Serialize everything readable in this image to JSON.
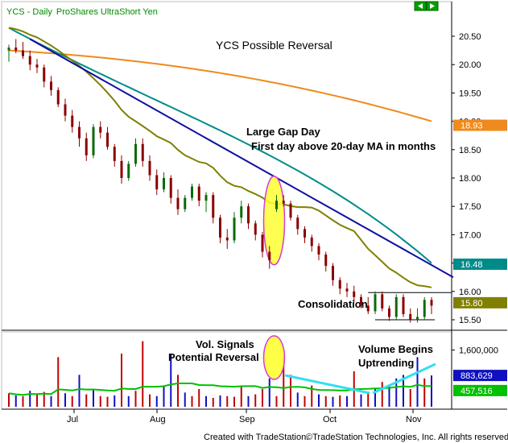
{
  "header": {
    "symbol": "YCS",
    "separator": " - ",
    "interval": "Daily",
    "name": "ProShares UltraShort Yen"
  },
  "footer": {
    "left": "Created with TradeStation.",
    "right": "©TradeStation Technologies, Inc. All rights reserved."
  },
  "colors": {
    "background": "#ffffff",
    "price_bar": "#0a6a0a",
    "down_bar": "#8b0000",
    "ma20": "#808000",
    "ma50": "#008b8b",
    "ma200": "#ee8a1e",
    "trendline": "#1010a0",
    "highlight": "#ffff33",
    "ellipse_edge": "#d63ad6",
    "volume_up": "#1010c0",
    "volume_down": "#c00000",
    "volume_ma": "#00c000",
    "volume_trend": "#30e0f0"
  },
  "chart_data": {
    "type": "candlestick",
    "title": "YCS Possible Reversal",
    "x_ticks": [
      "Jul",
      "Aug",
      "Sep",
      "Oct",
      "Nov"
    ],
    "price_axis": {
      "ticks": [
        "20.50",
        "20.00",
        "19.50",
        "19.00",
        "18.50",
        "18.00",
        "17.50",
        "17.00",
        "16.50",
        "16.00",
        "15.50"
      ],
      "range": [
        15.5,
        20.75
      ]
    },
    "price_labels": [
      {
        "value": 18.93,
        "text": "18.93",
        "color": "#ee8a1e"
      },
      {
        "value": 16.48,
        "text": "16.48",
        "color": "#008b8b"
      },
      {
        "value": 15.8,
        "text": "15.80",
        "color": "#808000"
      }
    ],
    "annotations": {
      "gap_title": "Large Gap Day",
      "gap_subtitle": "First day above 20-day MA in months",
      "consolidation": "Consolidation",
      "vol_signals_1": "Vol. Signals",
      "vol_signals_2": "Potential  Reversal",
      "vol_begins_1": "Volume Begins",
      "vol_begins_2": "Uptrending"
    },
    "price_bars": [
      [
        20.25,
        20.35,
        20.05,
        20.3
      ],
      [
        20.3,
        20.45,
        20.2,
        20.25
      ],
      [
        20.25,
        20.4,
        20.1,
        20.15
      ],
      [
        20.15,
        20.25,
        19.9,
        20.0
      ],
      [
        20.0,
        20.1,
        19.85,
        19.95
      ],
      [
        19.95,
        20.0,
        19.6,
        19.7
      ],
      [
        19.7,
        19.8,
        19.45,
        19.55
      ],
      [
        19.55,
        19.6,
        19.25,
        19.3
      ],
      [
        19.3,
        19.4,
        19.0,
        19.1
      ],
      [
        19.1,
        19.2,
        18.8,
        18.9
      ],
      [
        18.9,
        19.0,
        18.55,
        18.7
      ],
      [
        18.7,
        18.8,
        18.3,
        18.4
      ],
      [
        18.4,
        18.95,
        18.35,
        18.9
      ],
      [
        18.9,
        19.0,
        18.7,
        18.8
      ],
      [
        18.8,
        18.9,
        18.5,
        18.55
      ],
      [
        18.55,
        18.6,
        18.2,
        18.3
      ],
      [
        18.3,
        18.4,
        17.9,
        18.0
      ],
      [
        18.0,
        18.3,
        17.95,
        18.25
      ],
      [
        18.25,
        18.7,
        18.2,
        18.6
      ],
      [
        18.6,
        18.7,
        18.2,
        18.3
      ],
      [
        18.3,
        18.4,
        17.95,
        18.05
      ],
      [
        18.05,
        18.15,
        17.7,
        17.8
      ],
      [
        17.8,
        18.1,
        17.75,
        18.0
      ],
      [
        18.0,
        18.05,
        17.55,
        17.65
      ],
      [
        17.65,
        17.8,
        17.35,
        17.45
      ],
      [
        17.45,
        17.7,
        17.4,
        17.65
      ],
      [
        17.65,
        17.9,
        17.6,
        17.85
      ],
      [
        17.85,
        17.9,
        17.5,
        17.6
      ],
      [
        17.6,
        17.75,
        17.4,
        17.7
      ],
      [
        17.7,
        17.75,
        17.2,
        17.3
      ],
      [
        17.3,
        17.35,
        16.85,
        16.95
      ],
      [
        16.95,
        17.1,
        16.75,
        16.9
      ],
      [
        16.9,
        17.4,
        16.85,
        17.3
      ],
      [
        17.3,
        17.6,
        17.2,
        17.5
      ],
      [
        17.5,
        17.55,
        17.1,
        17.2
      ],
      [
        17.2,
        17.25,
        16.9,
        17.0
      ],
      [
        17.0,
        17.05,
        16.6,
        16.7
      ],
      [
        16.7,
        16.8,
        16.4,
        16.55
      ],
      [
        17.45,
        17.7,
        17.4,
        17.6
      ],
      [
        17.6,
        17.7,
        17.5,
        17.55
      ],
      [
        17.55,
        17.6,
        17.25,
        17.3
      ],
      [
        17.3,
        17.35,
        17.0,
        17.1
      ],
      [
        17.1,
        17.15,
        16.85,
        16.95
      ],
      [
        16.95,
        17.0,
        16.7,
        16.8
      ],
      [
        16.8,
        16.85,
        16.55,
        16.65
      ],
      [
        16.65,
        16.7,
        16.35,
        16.45
      ],
      [
        16.45,
        16.5,
        16.1,
        16.2
      ],
      [
        16.2,
        16.25,
        15.95,
        16.05
      ],
      [
        16.05,
        16.15,
        15.9,
        16.0
      ],
      [
        16.0,
        16.1,
        15.8,
        15.9
      ],
      [
        15.9,
        15.95,
        15.7,
        15.75
      ],
      [
        15.75,
        15.9,
        15.6,
        15.65
      ],
      [
        15.65,
        16.0,
        15.6,
        15.95
      ],
      [
        15.95,
        16.0,
        15.65,
        15.7
      ],
      [
        15.7,
        15.75,
        15.48,
        15.55
      ],
      [
        15.55,
        15.95,
        15.5,
        15.9
      ],
      [
        15.9,
        15.95,
        15.55,
        15.6
      ],
      [
        15.6,
        15.7,
        15.45,
        15.5
      ],
      [
        15.5,
        15.7,
        15.45,
        15.55
      ],
      [
        15.55,
        15.9,
        15.5,
        15.85
      ],
      [
        15.85,
        15.9,
        15.6,
        15.75
      ]
    ],
    "volume_axis": {
      "ticks": [
        "1,600,000"
      ],
      "labels": [
        {
          "value": 883629,
          "text": "883,629",
          "color": "#1010c0"
        },
        {
          "value": 457516,
          "text": "457,516",
          "color": "#00c000"
        }
      ],
      "range": [
        0,
        2000000
      ]
    },
    "volume_bars": [
      [
        380000,
        "down"
      ],
      [
        320000,
        "up"
      ],
      [
        300000,
        "down"
      ],
      [
        450000,
        "up"
      ],
      [
        350000,
        "down"
      ],
      [
        420000,
        "down"
      ],
      [
        300000,
        "up"
      ],
      [
        1400000,
        "down"
      ],
      [
        380000,
        "up"
      ],
      [
        300000,
        "down"
      ],
      [
        900000,
        "up"
      ],
      [
        350000,
        "down"
      ],
      [
        500000,
        "up"
      ],
      [
        300000,
        "down"
      ],
      [
        280000,
        "down"
      ],
      [
        320000,
        "up"
      ],
      [
        1500000,
        "down"
      ],
      [
        300000,
        "up"
      ],
      [
        450000,
        "down"
      ],
      [
        1850000,
        "down"
      ],
      [
        350000,
        "down"
      ],
      [
        300000,
        "up"
      ],
      [
        600000,
        "up"
      ],
      [
        1500000,
        "up"
      ],
      [
        900000,
        "down"
      ],
      [
        400000,
        "up"
      ],
      [
        300000,
        "down"
      ],
      [
        500000,
        "down"
      ],
      [
        300000,
        "up"
      ],
      [
        250000,
        "down"
      ],
      [
        320000,
        "up"
      ],
      [
        300000,
        "down"
      ],
      [
        280000,
        "down"
      ],
      [
        600000,
        "down"
      ],
      [
        300000,
        "up"
      ],
      [
        350000,
        "down"
      ],
      [
        500000,
        "down"
      ],
      [
        800000,
        "up"
      ],
      [
        300000,
        "down"
      ],
      [
        1450000,
        "down"
      ],
      [
        900000,
        "down"
      ],
      [
        400000,
        "up"
      ],
      [
        300000,
        "down"
      ],
      [
        600000,
        "down"
      ],
      [
        350000,
        "up"
      ],
      [
        300000,
        "down"
      ],
      [
        280000,
        "up"
      ],
      [
        320000,
        "down"
      ],
      [
        300000,
        "up"
      ],
      [
        1000000,
        "down"
      ],
      [
        350000,
        "up"
      ],
      [
        400000,
        "down"
      ],
      [
        500000,
        "up"
      ],
      [
        700000,
        "down"
      ],
      [
        600000,
        "up"
      ],
      [
        800000,
        "up"
      ],
      [
        900000,
        "up"
      ],
      [
        500000,
        "down"
      ],
      [
        1400000,
        "up"
      ],
      [
        800000,
        "down"
      ],
      [
        883629,
        "up"
      ]
    ]
  }
}
